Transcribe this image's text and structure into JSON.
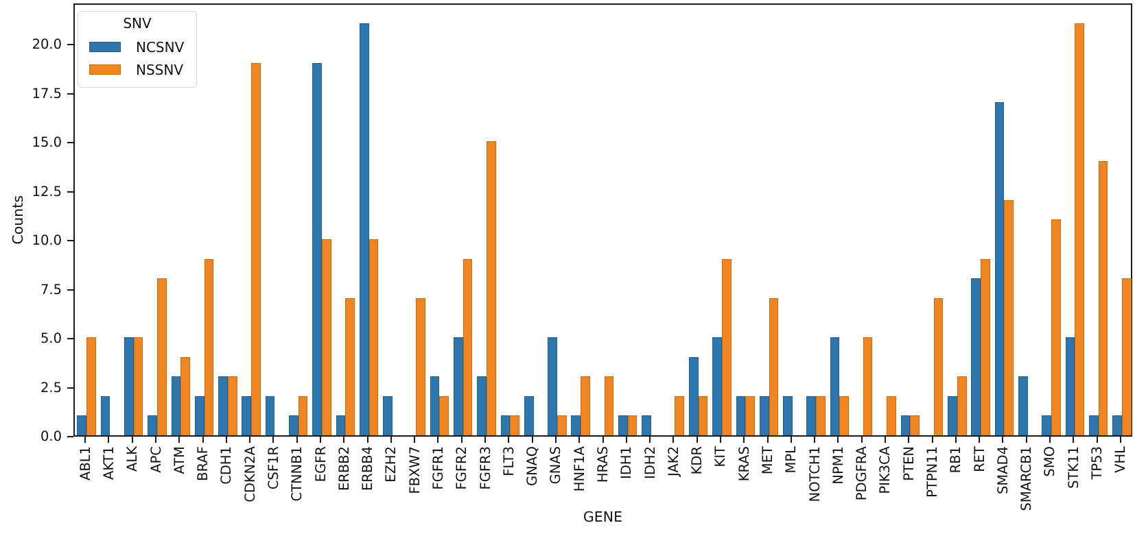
{
  "axes": {
    "xlabel": "GENE",
    "ylabel": "Counts"
  },
  "legend": {
    "title": "SNV",
    "items": [
      {
        "label": "NCSNV",
        "color": "#2e76ae"
      },
      {
        "label": "NSSNV",
        "color": "#f08621"
      }
    ]
  },
  "chart_data": {
    "type": "bar",
    "title": "",
    "xlabel": "GENE",
    "ylabel": "Counts",
    "legend_title": "SNV",
    "legend_position": "upper left",
    "grid": false,
    "ylim": [
      0,
      22.1
    ],
    "ytick_values": [
      0,
      2.5,
      5,
      7.5,
      10,
      12.5,
      15,
      17.5,
      20
    ],
    "ytick_labels": [
      "0.0",
      "2.5",
      "5.0",
      "7.5",
      "10.0",
      "12.5",
      "15.0",
      "17.5",
      "20.0"
    ],
    "categories": [
      "ABL1",
      "AKT1",
      "ALK",
      "APC",
      "ATM",
      "BRAF",
      "CDH1",
      "CDKN2A",
      "CSF1R",
      "CTNNB1",
      "EGFR",
      "ERBB2",
      "ERBB4",
      "EZH2",
      "FBXW7",
      "FGFR1",
      "FGFR2",
      "FGFR3",
      "FLT3",
      "GNAQ",
      "GNAS",
      "HNF1A",
      "HRAS",
      "IDH1",
      "IDH2",
      "JAK2",
      "KDR",
      "KIT",
      "KRAS",
      "MET",
      "MPL",
      "NOTCH1",
      "NPM1",
      "PDGFRA",
      "PIK3CA",
      "PTEN",
      "PTPN11",
      "RB1",
      "RET",
      "SMAD4",
      "SMARCB1",
      "SMO",
      "STK11",
      "TP53",
      "VHL"
    ],
    "series": [
      {
        "name": "NCSNV",
        "color": "#2e76ae",
        "edge": "#235d8c",
        "values": [
          1,
          2,
          5,
          1,
          3,
          2,
          3,
          2,
          2,
          1,
          19,
          1,
          21,
          2,
          0,
          3,
          5,
          3,
          1,
          2,
          5,
          1,
          0,
          1,
          1,
          0,
          4,
          5,
          2,
          2,
          2,
          2,
          5,
          0,
          0,
          1,
          0,
          2,
          8,
          17,
          3,
          1,
          5,
          1,
          1
        ]
      },
      {
        "name": "NSSNV",
        "color": "#f08621",
        "edge": "#c96c10",
        "values": [
          5,
          0,
          5,
          8,
          4,
          9,
          3,
          19,
          0,
          2,
          10,
          7,
          10,
          0,
          7,
          2,
          9,
          15,
          1,
          0,
          1,
          3,
          3,
          1,
          0,
          2,
          2,
          9,
          2,
          7,
          0,
          2,
          2,
          5,
          2,
          1,
          7,
          3,
          9,
          12,
          0,
          11,
          21,
          14,
          8
        ]
      }
    ]
  }
}
